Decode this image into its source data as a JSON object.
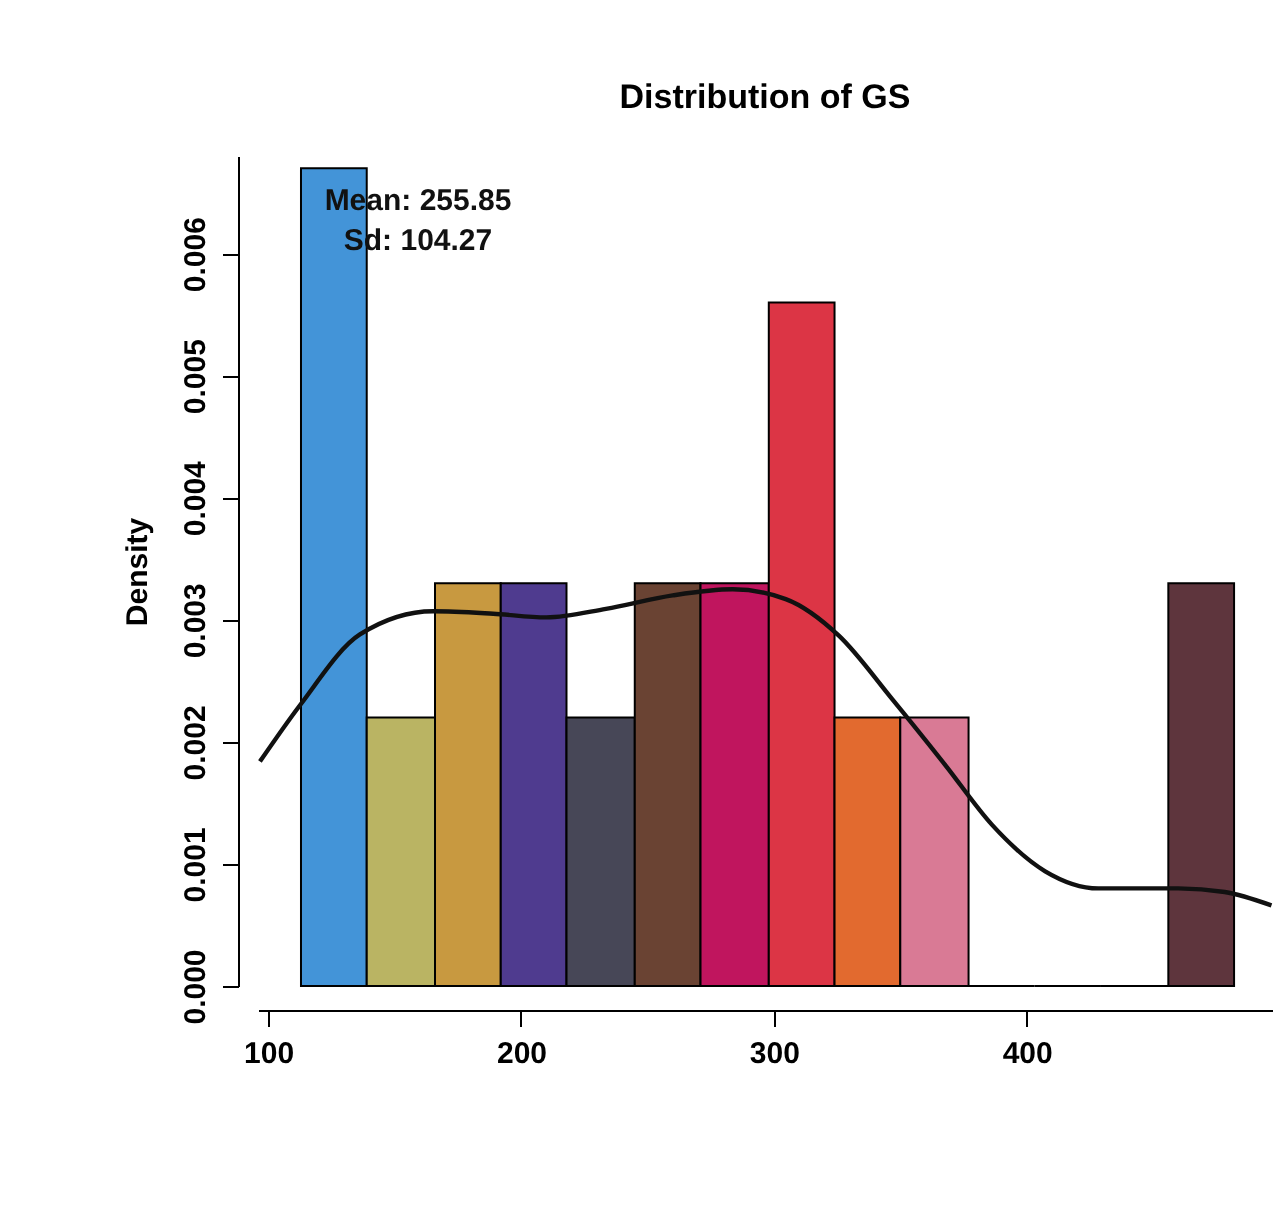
{
  "chart_data": {
    "type": "histogram",
    "title": "Distribution of GS",
    "ylabel": "Density",
    "annotations": [
      "Mean: 255.85",
      "Sd: 104.27"
    ],
    "xlim": [
      96,
      497
    ],
    "xticks": [
      100,
      200,
      300,
      400
    ],
    "ylim": [
      0,
      0.0068
    ],
    "yticks": [
      {
        "value": 0,
        "label": "0.000"
      },
      {
        "value": 0.001,
        "label": "0.001"
      },
      {
        "value": 0.002,
        "label": "0.002"
      },
      {
        "value": 0.003,
        "label": "0.003"
      },
      {
        "value": 0.004,
        "label": "0.004"
      },
      {
        "value": 0.005,
        "label": "0.005"
      },
      {
        "value": 0.006,
        "label": "0.006"
      }
    ],
    "grid": false,
    "series": [
      {
        "bins": [
          113,
          139,
          166,
          192,
          218,
          245,
          271,
          298,
          324,
          350,
          377,
          403,
          429,
          456,
          482
        ],
        "values": [
          0.0067,
          0.0022,
          0.0033,
          0.0033,
          0.0022,
          0.0033,
          0.0033,
          0.0056,
          0.0022,
          0.0022,
          0,
          0,
          0,
          0.0033
        ],
        "colors": [
          "#4394d8",
          "#bab463",
          "#c89940",
          "#4f3b8f",
          "#474757",
          "#6a4333",
          "#c0155e",
          "#dc3545",
          "#e26a2f",
          "#d97a95",
          "#000000",
          "#000000",
          "#000000",
          "#5e353d"
        ]
      },
      {
        "type": "line",
        "color": "#111111",
        "line_style": "solid",
        "x": [
          96.8,
          112.6,
          136.3,
          165.3,
          189,
          210,
          233.6,
          260,
          283.7,
          304.7,
          325.7,
          346.8,
          367.8,
          386.3,
          407.3,
          428.3,
          459.9,
          478.3,
          496.8
        ],
        "values": [
          0.00184,
          0.0023,
          0.00288,
          0.00307,
          0.00305,
          0.00302,
          0.00309,
          0.0032,
          0.00325,
          0.00317,
          0.00287,
          0.00235,
          0.00181,
          0.00132,
          0.00094,
          0.0008,
          0.0008,
          0.00077,
          0.00066
        ]
      }
    ]
  }
}
